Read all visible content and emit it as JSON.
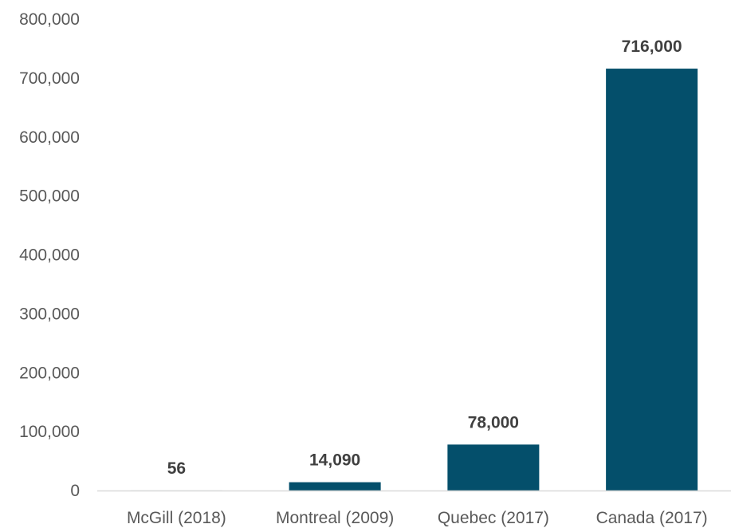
{
  "chart_data": {
    "type": "bar",
    "title": "",
    "xlabel": "",
    "ylabel": "",
    "categories": [
      "McGill (2018)",
      "Montreal (2009)",
      "Quebec (2017)",
      "Canada (2017)"
    ],
    "values": [
      56,
      14090,
      78000,
      716000
    ],
    "data_labels": [
      "56",
      "14,090",
      "78,000",
      "716,000"
    ],
    "ylim": [
      0,
      800000
    ],
    "yticks": [
      0,
      100000,
      200000,
      300000,
      400000,
      500000,
      600000,
      700000,
      800000
    ],
    "ytick_labels": [
      "0",
      "100,000",
      "200,000",
      "300,000",
      "400,000",
      "500,000",
      "600,000",
      "700,000",
      "800,000"
    ],
    "grid": false,
    "legend": "none",
    "bar_color": "#044F6B",
    "axis_color": "#D9D9D9"
  }
}
